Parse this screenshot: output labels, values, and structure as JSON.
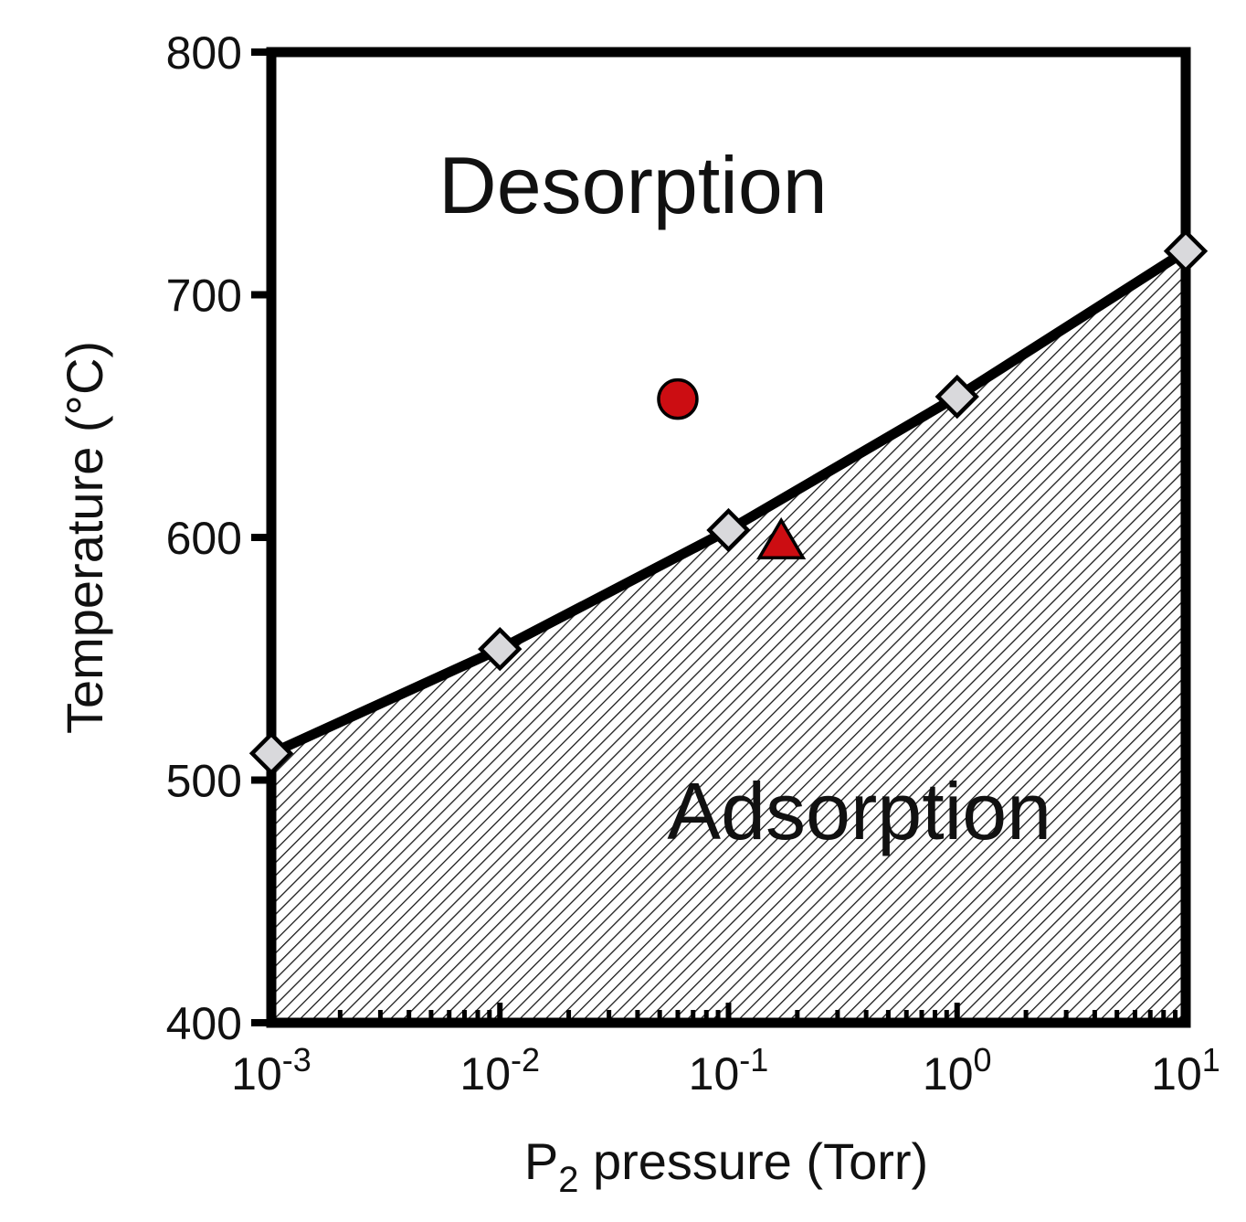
{
  "chart_data": {
    "type": "line",
    "title": "",
    "xlabel": {
      "prefix": "P",
      "subscript": "2",
      "suffix": " pressure (Torr)"
    },
    "ylabel": "Temperature (°C)",
    "xscale": "log",
    "xlim": [
      0.001,
      10
    ],
    "ylim": [
      400,
      800
    ],
    "x_ticks": [
      {
        "value": 0.001,
        "base": "10",
        "exp": "-3"
      },
      {
        "value": 0.01,
        "base": "10",
        "exp": "-2"
      },
      {
        "value": 0.1,
        "base": "10",
        "exp": "-1"
      },
      {
        "value": 1,
        "base": "10",
        "exp": "0"
      },
      {
        "value": 10,
        "base": "10",
        "exp": "1"
      }
    ],
    "y_ticks": [
      {
        "value": 400,
        "label": "400"
      },
      {
        "value": 500,
        "label": "500"
      },
      {
        "value": 600,
        "label": "600"
      },
      {
        "value": 700,
        "label": "700"
      },
      {
        "value": 800,
        "label": "800"
      }
    ],
    "series": [
      {
        "name": "Adsorption/desorption boundary",
        "marker": "diamond",
        "color": "#000000",
        "marker_fill": "#d9d9dc",
        "x": [
          0.001,
          0.01,
          0.1,
          1,
          10
        ],
        "y": [
          511,
          554,
          603,
          658,
          718
        ]
      },
      {
        "name": "Red circle point",
        "marker": "circle",
        "color": "#cc0d12",
        "x": [
          0.06
        ],
        "y": [
          657
        ]
      },
      {
        "name": "Red triangle point",
        "marker": "triangle",
        "color": "#cc0d12",
        "x": [
          0.17
        ],
        "y": [
          598
        ]
      }
    ],
    "regions": [
      {
        "label": "Desorption",
        "fill": "none",
        "anchor_x": 0.05,
        "anchor_y": 745
      },
      {
        "label": "Adsorption",
        "fill": "hatched",
        "anchor_x": 0.5,
        "anchor_y": 487
      }
    ],
    "grid": false,
    "legend": "none"
  }
}
